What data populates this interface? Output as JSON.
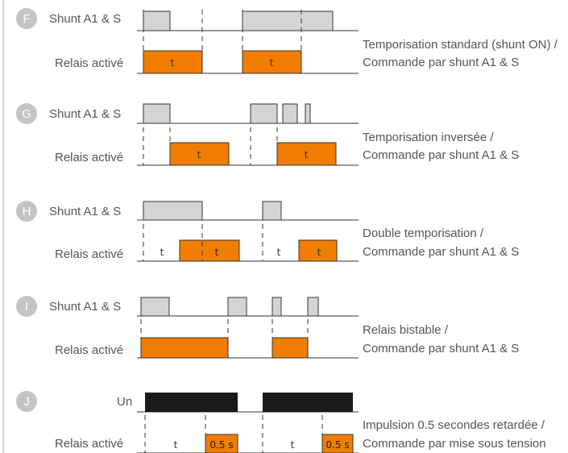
{
  "colors": {
    "badge": "#c4c4c4",
    "shunt_fill": "#d4d4d4",
    "relay_fill": "#f07d00",
    "power_fill": "#1a1a1a",
    "line": "#333333",
    "text": "#555555"
  },
  "panels": [
    {
      "letter": "F",
      "top_label": "Shunt A1 & S",
      "bottom_label": "Relais activé",
      "description": [
        "Temporisation standard (shunt ON) /",
        "Commande par shunt A1 & S"
      ]
    },
    {
      "letter": "G",
      "top_label": "Shunt A1 & S",
      "bottom_label": "Relais activé",
      "description": [
        "Temporisation inversée /",
        "Commande par shunt A1 & S"
      ]
    },
    {
      "letter": "H",
      "top_label": "Shunt A1 & S",
      "bottom_label": "Relais activé",
      "description": [
        "Double temporisation /",
        "Commande par shunt A1 & S"
      ]
    },
    {
      "letter": "I",
      "top_label": "Shunt A1 & S",
      "bottom_label": "Relais activé",
      "description": [
        "Relais bistable /",
        "Commande par shunt A1 & S"
      ]
    },
    {
      "letter": "J",
      "top_label": "Un",
      "bottom_label": "Relais activé",
      "description": [
        "Impulsion 0.5 secondes retardée /",
        "Commande par mise sous tension"
      ]
    }
  ],
  "timing_labels": {
    "t": "t",
    "half_second": "0.5 s"
  }
}
